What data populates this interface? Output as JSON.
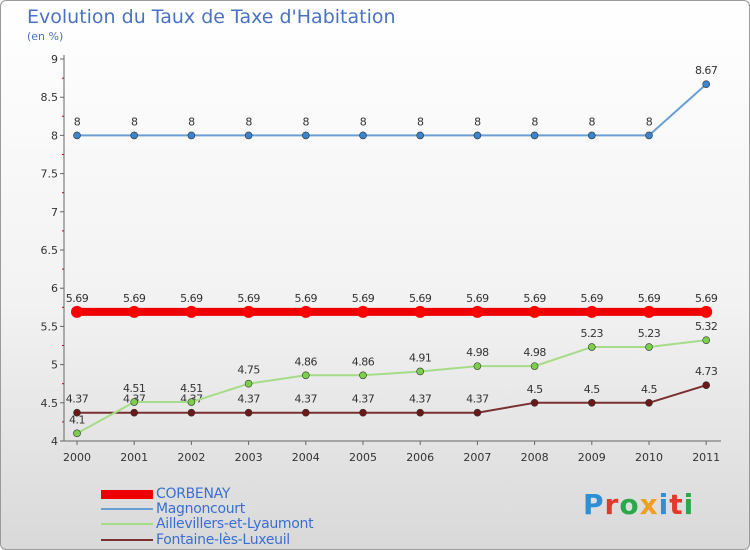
{
  "title": "Evolution du Taux de Taxe d'Habitation",
  "subtitle": "(en %)",
  "brand": {
    "text": "Proxiti",
    "letter_colors": [
      "#2d8fd6",
      "#e23a2a",
      "#2aa84a",
      "#f0a020",
      "#2d8fd6",
      "#e23a2a",
      "#2aa84a"
    ]
  },
  "chart_data": {
    "type": "line",
    "title": "Evolution du Taux de Taxe d'Habitation",
    "ylabel": "(en %)",
    "xlabel": "",
    "ylim": [
      4,
      9
    ],
    "yticks": [
      "4",
      "4.5",
      "5",
      "5.5",
      "6",
      "6.5",
      "7",
      "7.5",
      "8",
      "8.5",
      "9"
    ],
    "x": [
      "2000",
      "2001",
      "2002",
      "2003",
      "2004",
      "2005",
      "2006",
      "2007",
      "2008",
      "2009",
      "2010",
      "2011"
    ],
    "series": [
      {
        "name": "CORBENAY",
        "color": "#ee0000",
        "marker": "#ff0000",
        "values": [
          5.69,
          5.69,
          5.69,
          5.69,
          5.69,
          5.69,
          5.69,
          5.69,
          5.69,
          5.69,
          5.69,
          5.69
        ],
        "labels": [
          "5.69",
          "5.69",
          "5.69",
          "5.69",
          "5.69",
          "5.69",
          "5.69",
          "5.69",
          "5.69",
          "5.69",
          "5.69",
          "5.69"
        ]
      },
      {
        "name": "Magnoncourt",
        "color": "#6a9fd4",
        "marker": "#3a85cc",
        "values": [
          8,
          8,
          8,
          8,
          8,
          8,
          8,
          8,
          8,
          8,
          8,
          8.67
        ],
        "labels": [
          "8",
          "8",
          "8",
          "8",
          "8",
          "8",
          "8",
          "8",
          "8",
          "8",
          "8",
          "8.67"
        ]
      },
      {
        "name": "Aillevillers-et-Lyaumont",
        "color": "#a6dc88",
        "marker": "#7ccf4a",
        "values": [
          4.1,
          4.51,
          4.51,
          4.75,
          4.86,
          4.86,
          4.91,
          4.98,
          4.98,
          5.23,
          5.23,
          5.32
        ],
        "labels": [
          "4.1",
          "4.51",
          "4.51",
          "4.75",
          "4.86",
          "4.86",
          "4.91",
          "4.98",
          "4.98",
          "5.23",
          "5.23",
          "5.32"
        ]
      },
      {
        "name": "Fontaine-lès-Luxeuil",
        "color": "#7a3030",
        "marker": "#6a1818",
        "values": [
          4.37,
          4.37,
          4.37,
          4.37,
          4.37,
          4.37,
          4.37,
          4.37,
          4.5,
          4.5,
          4.5,
          4.73
        ],
        "labels": [
          "4.37",
          "4.37",
          "4.37",
          "4.37",
          "4.37",
          "4.37",
          "4.37",
          "4.37",
          "4.5",
          "4.5",
          "4.5",
          "4.73"
        ]
      }
    ],
    "legend": {
      "position": "bottom-left"
    }
  }
}
